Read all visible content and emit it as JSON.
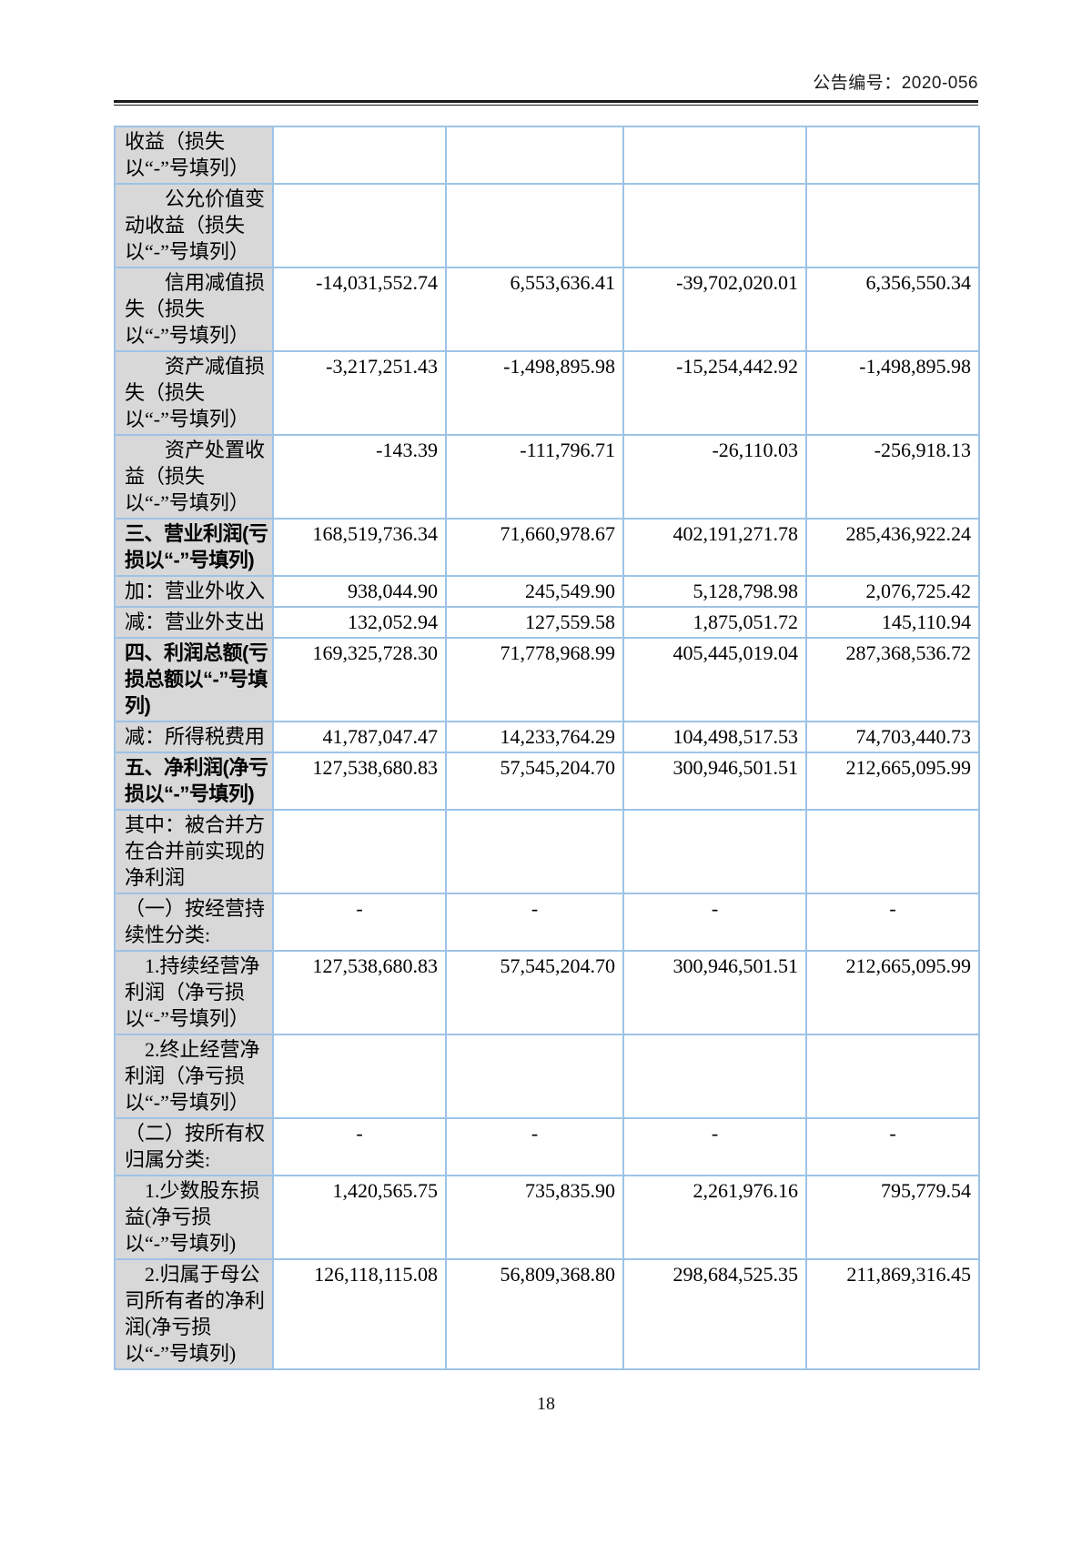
{
  "page": {
    "header_right": "公告编号：2020-056",
    "page_number": "18"
  },
  "colors": {
    "table_border": "#9dc3e6",
    "label_background": "#d8d8d8",
    "header_rule": "#1b1b1b",
    "text": "#000000"
  },
  "table": {
    "column_count": 5,
    "rows": [
      {
        "label": "收益（损失以“-”号填列）",
        "bold": false,
        "indent": 0,
        "values": [
          "",
          "",
          "",
          ""
        ]
      },
      {
        "label": "公允价值变动收益（损失以“-”号填列）",
        "bold": false,
        "indent": 2,
        "values": [
          "",
          "",
          "",
          ""
        ]
      },
      {
        "label": "信用减值损失（损失以“-”号填列）",
        "bold": false,
        "indent": 2,
        "values": [
          "-14,031,552.74",
          "6,553,636.41",
          "-39,702,020.01",
          "6,356,550.34"
        ]
      },
      {
        "label": "资产减值损失（损失以“-”号填列）",
        "bold": false,
        "indent": 2,
        "values": [
          "-3,217,251.43",
          "-1,498,895.98",
          "-15,254,442.92",
          "-1,498,895.98"
        ]
      },
      {
        "label": "资产处置收益（损失以“-”号填列）",
        "bold": false,
        "indent": 2,
        "values": [
          "-143.39",
          "-111,796.71",
          "-26,110.03",
          "-256,918.13"
        ]
      },
      {
        "label": "三、营业利润(亏损以“-”号填列)",
        "bold": true,
        "indent": 0,
        "values": [
          "168,519,736.34",
          "71,660,978.67",
          "402,191,271.78",
          "285,436,922.24"
        ]
      },
      {
        "label": "加：营业外收入",
        "bold": false,
        "indent": 0,
        "values": [
          "938,044.90",
          "245,549.90",
          "5,128,798.98",
          "2,076,725.42"
        ]
      },
      {
        "label": "减：营业外支出",
        "bold": false,
        "indent": 0,
        "values": [
          "132,052.94",
          "127,559.58",
          "1,875,051.72",
          "145,110.94"
        ]
      },
      {
        "label": "四、利润总额(亏损总额以“-”号填列)",
        "bold": true,
        "indent": 0,
        "values": [
          "169,325,728.30",
          "71,778,968.99",
          "405,445,019.04",
          "287,368,536.72"
        ]
      },
      {
        "label": "减：所得税费用",
        "bold": false,
        "indent": 0,
        "values": [
          "41,787,047.47",
          "14,233,764.29",
          "104,498,517.53",
          "74,703,440.73"
        ]
      },
      {
        "label": "五、净利润(净亏损以“-”号填列)",
        "bold": true,
        "indent": 0,
        "values": [
          "127,538,680.83",
          "57,545,204.70",
          "300,946,501.51",
          "212,665,095.99"
        ]
      },
      {
        "label": "其中：被合并方在合并前实现的净利润",
        "bold": false,
        "indent": 0,
        "values": [
          "",
          "",
          "",
          ""
        ]
      },
      {
        "label": "（一）按经营持续性分类:",
        "bold": false,
        "indent": 0,
        "values": [
          "-",
          "-",
          "-",
          "-"
        ]
      },
      {
        "label": "1.持续经营净利润（净亏损以“-”号填列）",
        "bold": false,
        "indent": 1,
        "values": [
          "127,538,680.83",
          "57,545,204.70",
          "300,946,501.51",
          "212,665,095.99"
        ]
      },
      {
        "label": "2.终止经营净利润（净亏损以“-”号填列）",
        "bold": false,
        "indent": 1,
        "values": [
          "",
          "",
          "",
          ""
        ]
      },
      {
        "label": "（二）按所有权归属分类:",
        "bold": false,
        "indent": 0,
        "values": [
          "-",
          "-",
          "-",
          "-"
        ]
      },
      {
        "label": "1.少数股东损益(净亏损以“-”号填列)",
        "bold": false,
        "indent": 1,
        "values": [
          "1,420,565.75",
          "735,835.90",
          "2,261,976.16",
          "795,779.54"
        ]
      },
      {
        "label": "2.归属于母公司所有者的净利润(净亏损以“-”号填列)",
        "bold": false,
        "indent": 1,
        "values": [
          "126,118,115.08",
          "56,809,368.80",
          "298,684,525.35",
          "211,869,316.45"
        ]
      }
    ]
  }
}
